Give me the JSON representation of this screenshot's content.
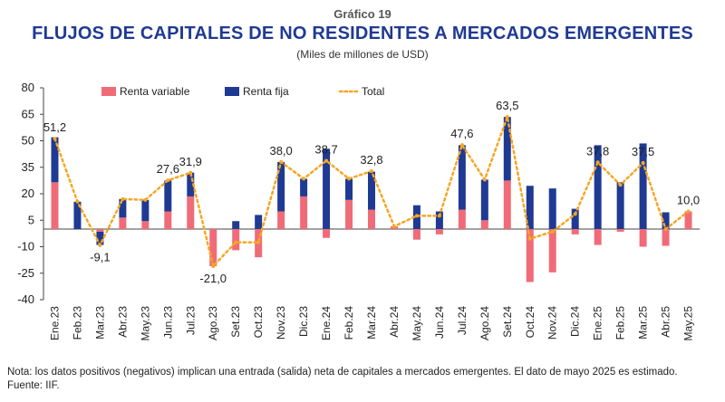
{
  "header": {
    "supertitle": "Gráfico 19",
    "title": "FLUJOS DE CAPITALES DE NO RESIDENTES A MERCADOS EMERGENTES",
    "subtitle": "(Miles de millones de USD)"
  },
  "footer": {
    "note": "Nota: los datos positivos (negativos) implican una entrada (salida) neta de capitales a mercados emergentes. El dato de mayo 2025 es estimado.",
    "source": "Fuente: IIF."
  },
  "chart_data": {
    "type": "bar",
    "stacked": true,
    "ylim": [
      -40,
      80
    ],
    "yticks": [
      -40,
      -25,
      -10,
      5,
      20,
      35,
      50,
      65,
      80
    ],
    "grid": false,
    "legend": "top",
    "categories": [
      "Ene.23",
      "Feb.23",
      "Mar.23",
      "Abr.23",
      "May.23",
      "Jun.23",
      "Jul.23",
      "Ago.23",
      "Set.23",
      "Oct.23",
      "Nov.23",
      "Dic.23",
      "Ene.24",
      "Feb.24",
      "Mar.24",
      "Abr.24",
      "May.24",
      "Jun.24",
      "Jul.24",
      "Ago.24",
      "Set.24",
      "Oct.24",
      "Nov.24",
      "Dic.24",
      "Ene.25",
      "Feb.25",
      "Mar.25",
      "Abr.25",
      "May.25"
    ],
    "series": [
      {
        "name": "Renta variable",
        "type": "bar",
        "color": "#f06b78",
        "values": [
          26.5,
          0,
          -1.5,
          6.5,
          4.5,
          10,
          18.5,
          -21,
          -12,
          -16,
          10,
          18.5,
          -5,
          16.5,
          11,
          1.5,
          -6,
          -3,
          11,
          5,
          27.5,
          -30,
          -24.5,
          -3,
          -9,
          -1.5,
          -10,
          -9.5,
          10
        ]
      },
      {
        "name": "Renta fija",
        "type": "bar",
        "color": "#1f3a93",
        "values": [
          25.5,
          15.5,
          -7.5,
          10.5,
          12,
          17.5,
          13.5,
          0,
          4.5,
          8,
          28,
          10,
          45.5,
          12,
          21.5,
          0,
          13.5,
          10,
          36.5,
          23,
          36,
          24.5,
          23,
          11.5,
          47.5,
          26.5,
          48.5,
          9.5,
          0
        ]
      },
      {
        "name": "Total",
        "type": "line",
        "color": "#f5a623",
        "values": [
          51.2,
          15.5,
          -9.1,
          17,
          16.5,
          27.6,
          31.9,
          -21.0,
          -7.5,
          -7.5,
          38.0,
          28.5,
          38.7,
          28.5,
          32.8,
          1.5,
          7.5,
          7.5,
          47.6,
          28,
          63.5,
          -5.5,
          -1.5,
          8.5,
          37.8,
          25,
          37.5,
          0,
          10.0
        ]
      }
    ],
    "data_labels": [
      {
        "index": 0,
        "text": "51,2"
      },
      {
        "index": 2,
        "text": "-9,1"
      },
      {
        "index": 5,
        "text": "27,6"
      },
      {
        "index": 6,
        "text": "31,9"
      },
      {
        "index": 7,
        "text": "-21,0"
      },
      {
        "index": 10,
        "text": "38,0"
      },
      {
        "index": 12,
        "text": "38,7"
      },
      {
        "index": 14,
        "text": "32,8"
      },
      {
        "index": 18,
        "text": "47,6"
      },
      {
        "index": 20,
        "text": "63,5"
      },
      {
        "index": 24,
        "text": "37,8"
      },
      {
        "index": 26,
        "text": "37,5"
      },
      {
        "index": 28,
        "text": "10,0"
      }
    ]
  }
}
